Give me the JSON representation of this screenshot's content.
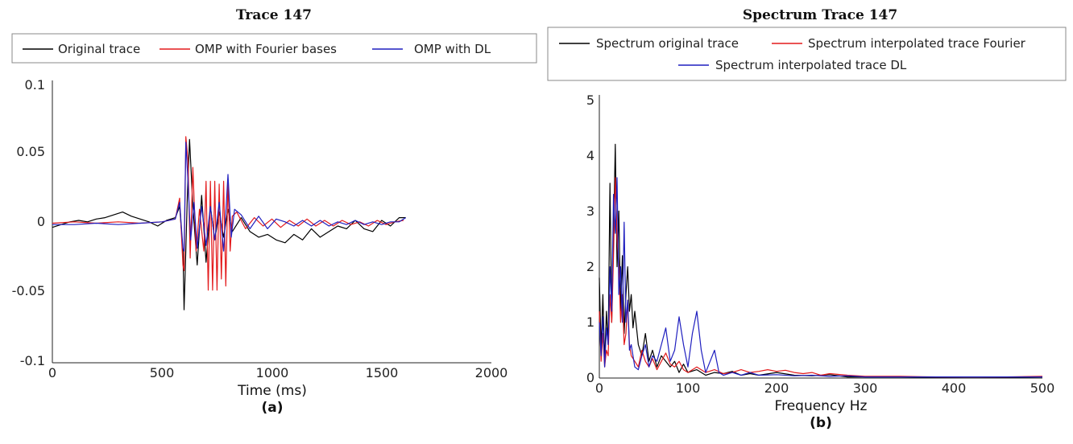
{
  "chart_data": [
    {
      "type": "line",
      "title": "Trace 147",
      "xlabel": "Time (ms)",
      "ylabel": "",
      "caption": "(a)",
      "xlim": [
        0,
        2000
      ],
      "ylim": [
        -0.1,
        0.1
      ],
      "xticks": [
        "0",
        "500",
        "1000",
        "1500",
        "2000"
      ],
      "yticks": [
        "0.1",
        "0.05",
        "0",
        "-0.05",
        "-0.1"
      ],
      "legend_position": "top",
      "colors": {
        "original": "#000000",
        "fourier": "#e31a1c",
        "dl": "#1f1fbf"
      },
      "series": [
        {
          "name": "Original trace",
          "color": "#000000",
          "x": [
            0,
            40,
            80,
            120,
            160,
            200,
            240,
            280,
            320,
            360,
            400,
            440,
            480,
            520,
            560,
            580,
            595,
            600,
            605,
            615,
            625,
            640,
            660,
            680,
            700,
            720,
            740,
            760,
            780,
            800,
            820,
            860,
            900,
            940,
            980,
            1020,
            1060,
            1100,
            1140,
            1180,
            1220,
            1260,
            1300,
            1340,
            1380,
            1420,
            1460,
            1500,
            1540,
            1580,
            1610
          ],
          "y": [
            -0.003,
            -0.001,
            0.001,
            0.002,
            0.001,
            0.003,
            0.004,
            0.006,
            0.008,
            0.005,
            0.003,
            0.001,
            -0.002,
            0.002,
            0.004,
            0.012,
            -0.02,
            -0.062,
            -0.035,
            0.02,
            0.06,
            0.012,
            -0.03,
            0.02,
            -0.028,
            0.012,
            -0.012,
            0.008,
            -0.01,
            0.01,
            -0.006,
            0.004,
            -0.006,
            -0.01,
            -0.008,
            -0.012,
            -0.014,
            -0.008,
            -0.012,
            -0.004,
            -0.01,
            -0.006,
            -0.002,
            -0.004,
            0.002,
            -0.004,
            -0.006,
            0.002,
            -0.002,
            0.004,
            0.004
          ]
        },
        {
          "name": "OMP with Fourier bases",
          "color": "#e31a1c",
          "x": [
            0,
            100,
            200,
            300,
            400,
            500,
            560,
            580,
            595,
            600,
            608,
            618,
            628,
            640,
            655,
            670,
            690,
            700,
            710,
            720,
            730,
            740,
            750,
            760,
            770,
            780,
            790,
            800,
            810,
            820,
            840,
            880,
            920,
            960,
            1000,
            1040,
            1080,
            1120,
            1160,
            1200,
            1240,
            1280,
            1320,
            1360,
            1400,
            1440,
            1480,
            1520,
            1560,
            1600
          ],
          "y": [
            0,
            0.001,
            0,
            0.001,
            0,
            0.001,
            0.003,
            0.018,
            -0.03,
            -0.034,
            0.062,
            0.045,
            -0.025,
            0.04,
            -0.02,
            0.01,
            -0.02,
            0.03,
            -0.048,
            0.03,
            -0.048,
            0.03,
            -0.048,
            0.028,
            -0.04,
            0.03,
            -0.045,
            0.03,
            -0.02,
            0.005,
            0.008,
            -0.004,
            0.004,
            -0.002,
            0.003,
            -0.003,
            0.002,
            -0.002,
            0.003,
            -0.002,
            0.002,
            -0.002,
            0.002,
            -0.001,
            0.001,
            -0.002,
            0.002,
            -0.001,
            0.001,
            0.002
          ]
        },
        {
          "name": "OMP with DL",
          "color": "#1f1fbf",
          "x": [
            0,
            100,
            200,
            300,
            400,
            500,
            560,
            580,
            595,
            600,
            608,
            618,
            630,
            645,
            660,
            680,
            700,
            720,
            740,
            760,
            780,
            800,
            815,
            830,
            860,
            900,
            940,
            980,
            1020,
            1060,
            1100,
            1140,
            1180,
            1220,
            1260,
            1300,
            1340,
            1380,
            1420,
            1460,
            1500,
            1540,
            1580,
            1610
          ],
          "y": [
            -0.001,
            -0.001,
            0,
            -0.001,
            0,
            0.001,
            0.003,
            0.015,
            -0.018,
            -0.02,
            0.058,
            0.03,
            -0.012,
            0.015,
            -0.018,
            0.012,
            -0.016,
            0.012,
            -0.012,
            0.015,
            -0.02,
            0.035,
            -0.01,
            0.01,
            0.006,
            -0.004,
            0.005,
            -0.004,
            0.003,
            0.001,
            -0.002,
            0.002,
            -0.002,
            0.002,
            -0.002,
            0.001,
            -0.001,
            0.002,
            -0.001,
            0.001,
            -0.001,
            0.001,
            0.001,
            0.004
          ]
        }
      ]
    },
    {
      "type": "line",
      "title": "Spectrum Trace 147",
      "xlabel": "Frequency Hz",
      "ylabel": "",
      "caption": "(b)",
      "xlim": [
        0,
        500
      ],
      "ylim": [
        0,
        5
      ],
      "xticks": [
        "0",
        "100",
        "200",
        "300",
        "400",
        "500"
      ],
      "yticks": [
        "5",
        "4",
        "3",
        "2",
        "1",
        "0"
      ],
      "legend_position": "top",
      "series": [
        {
          "name": "Spectrum original trace",
          "color": "#000000",
          "x": [
            0,
            2,
            4,
            6,
            8,
            10,
            12,
            14,
            16,
            18,
            20,
            22,
            24,
            26,
            28,
            30,
            32,
            34,
            36,
            38,
            40,
            44,
            48,
            52,
            56,
            60,
            65,
            70,
            75,
            80,
            85,
            90,
            95,
            100,
            110,
            120,
            130,
            140,
            150,
            160,
            170,
            180,
            200,
            220,
            240,
            260,
            280,
            300,
            340,
            380,
            420,
            460,
            500
          ],
          "y": [
            1.8,
            0.5,
            1.5,
            0.3,
            1.2,
            0.6,
            3.5,
            1.0,
            2.5,
            4.2,
            2.0,
            3.0,
            1.2,
            2.2,
            0.8,
            1.5,
            2.0,
            1.2,
            1.5,
            0.9,
            1.2,
            0.6,
            0.4,
            0.8,
            0.3,
            0.5,
            0.2,
            0.4,
            0.3,
            0.2,
            0.3,
            0.1,
            0.25,
            0.1,
            0.15,
            0.05,
            0.1,
            0.08,
            0.12,
            0.05,
            0.08,
            0.05,
            0.1,
            0.05,
            0.04,
            0.06,
            0.02,
            0.02,
            0.02,
            0.01,
            0.02,
            0.01,
            0.02
          ]
        },
        {
          "name": "Spectrum interpolated trace Fourier",
          "color": "#e31a1c",
          "x": [
            0,
            2,
            4,
            6,
            8,
            10,
            12,
            14,
            16,
            18,
            20,
            22,
            24,
            26,
            28,
            30,
            32,
            34,
            36,
            40,
            44,
            48,
            52,
            56,
            60,
            65,
            70,
            75,
            80,
            85,
            90,
            95,
            100,
            110,
            120,
            130,
            140,
            150,
            160,
            170,
            180,
            190,
            200,
            210,
            220,
            230,
            240,
            250,
            260,
            280,
            300,
            340,
            380,
            420,
            460,
            500
          ],
          "y": [
            1.2,
            0.3,
            0.8,
            0.2,
            0.5,
            0.4,
            1.5,
            1.0,
            2.2,
            3.6,
            2.5,
            2.0,
            1.0,
            1.5,
            0.6,
            0.8,
            1.4,
            0.6,
            0.4,
            0.3,
            0.2,
            0.5,
            0.3,
            0.2,
            0.35,
            0.15,
            0.3,
            0.45,
            0.25,
            0.2,
            0.3,
            0.15,
            0.1,
            0.2,
            0.1,
            0.15,
            0.08,
            0.1,
            0.15,
            0.1,
            0.12,
            0.15,
            0.12,
            0.14,
            0.1,
            0.08,
            0.1,
            0.05,
            0.08,
            0.05,
            0.03,
            0.03,
            0.02,
            0.02,
            0.02,
            0.03
          ]
        },
        {
          "name": "Spectrum interpolated trace DL",
          "color": "#1f1fbf",
          "x": [
            0,
            2,
            4,
            6,
            8,
            10,
            12,
            14,
            16,
            18,
            20,
            22,
            24,
            26,
            28,
            30,
            32,
            34,
            36,
            40,
            44,
            48,
            52,
            56,
            60,
            65,
            70,
            75,
            80,
            85,
            90,
            95,
            100,
            105,
            110,
            115,
            120,
            125,
            130,
            135,
            140,
            150,
            160,
            170,
            180,
            200,
            220,
            240,
            260,
            280,
            300,
            340,
            380,
            420,
            460,
            500
          ],
          "y": [
            1.0,
            0.4,
            1.1,
            0.2,
            0.9,
            0.6,
            2.0,
            1.2,
            3.3,
            2.6,
            3.6,
            1.5,
            2.0,
            1.0,
            2.8,
            1.0,
            1.4,
            0.5,
            0.6,
            0.2,
            0.15,
            0.4,
            0.6,
            0.2,
            0.4,
            0.3,
            0.6,
            0.9,
            0.3,
            0.5,
            1.1,
            0.6,
            0.2,
            0.8,
            1.2,
            0.5,
            0.1,
            0.3,
            0.5,
            0.1,
            0.05,
            0.1,
            0.05,
            0.1,
            0.05,
            0.06,
            0.04,
            0.05,
            0.03,
            0.04,
            0.02,
            0.02,
            0.02,
            0.02,
            0.02,
            0.02
          ]
        }
      ]
    }
  ]
}
